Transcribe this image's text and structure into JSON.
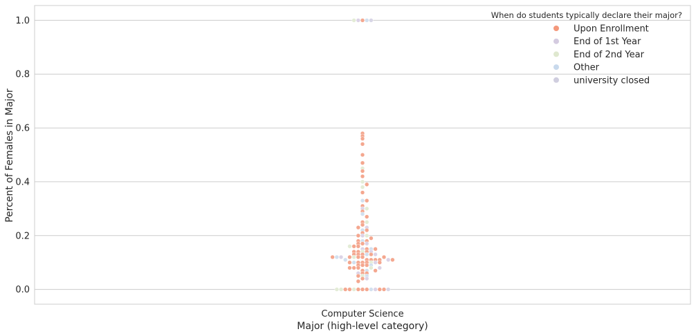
{
  "chart_data": {
    "type": "scatter",
    "subtype": "swarm",
    "title": "",
    "xlabel": "Major (high-level category)",
    "ylabel": "Percent of Females in Major",
    "categories": [
      "Computer Science"
    ],
    "yticks": [
      "0.0",
      "0.2",
      "0.4",
      "0.6",
      "0.8",
      "1.0"
    ],
    "ylim": [
      -0.055,
      1.055
    ],
    "grid": "horizontal",
    "legend": {
      "placement": "top-right",
      "title": "When do students typically declare their major?",
      "items": [
        {
          "label": "Upon Enrollment",
          "color": "#f4987b"
        },
        {
          "label": "End of 1st Year",
          "color": "#d4cbe0"
        },
        {
          "label": "End of 2nd Year",
          "color": "#dfe8cf"
        },
        {
          "label": "Other",
          "color": "#c8d9ec"
        },
        {
          "label": "university closed",
          "color": "#d0cedf"
        }
      ]
    },
    "series": [
      {
        "name": "Upon Enrollment",
        "color": "#f4a78f",
        "values": [
          0.0,
          0.0,
          0.0,
          0.0,
          0.0,
          0.0,
          0.0,
          0.03,
          0.04,
          0.05,
          0.06,
          0.06,
          0.07,
          0.07,
          0.08,
          0.08,
          0.08,
          0.09,
          0.09,
          0.09,
          0.1,
          0.1,
          0.1,
          0.1,
          0.1,
          0.11,
          0.11,
          0.11,
          0.11,
          0.11,
          0.12,
          0.12,
          0.12,
          0.12,
          0.12,
          0.13,
          0.13,
          0.13,
          0.13,
          0.14,
          0.14,
          0.14,
          0.15,
          0.15,
          0.16,
          0.16,
          0.17,
          0.17,
          0.18,
          0.18,
          0.19,
          0.2,
          0.21,
          0.22,
          0.23,
          0.24,
          0.25,
          0.27,
          0.29,
          0.31,
          0.33,
          0.36,
          0.39,
          0.42,
          0.44,
          0.47,
          0.5,
          0.54,
          0.56,
          0.57,
          0.58,
          1.0
        ]
      },
      {
        "name": "End of 1st Year",
        "color": "#dcd3e6",
        "values": [
          0.0,
          0.04,
          0.06,
          0.08,
          0.1,
          0.11,
          0.12,
          0.13,
          0.14,
          0.15,
          0.17,
          0.2,
          0.23,
          0.3,
          1.0
        ]
      },
      {
        "name": "End of 2nd Year",
        "color": "#e3ecd6",
        "values": [
          0.0,
          0.0,
          0.0,
          0.05,
          0.08,
          0.1,
          0.12,
          0.14,
          0.16,
          0.2,
          0.25,
          0.3,
          0.38,
          0.4,
          0.45,
          1.0
        ]
      },
      {
        "name": "Other",
        "color": "#d2e0ef",
        "values": [
          0.0,
          0.05,
          0.07,
          0.09,
          0.1,
          0.11,
          0.12,
          0.13,
          0.15,
          0.18,
          0.22,
          0.28,
          0.33,
          1.0
        ]
      },
      {
        "name": "university closed",
        "color": "#d8d6e6",
        "values": [
          0.0,
          1.0
        ]
      }
    ]
  }
}
